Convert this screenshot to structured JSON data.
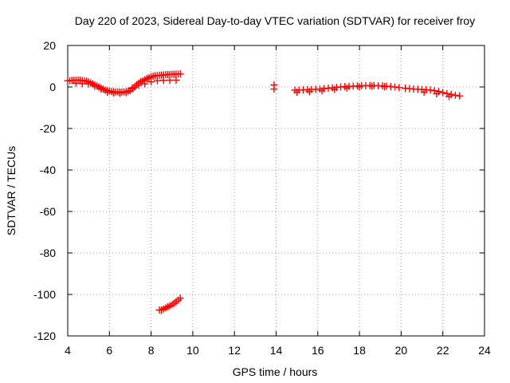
{
  "chart_data": {
    "type": "scatter",
    "title": "Day 220 of 2023, Sidereal Day-to-day VTEC variation (SDTVAR) for receiver froy",
    "xlabel": "GPS time / hours",
    "ylabel": "SDTVAR / TECUs",
    "xlim": [
      4,
      24
    ],
    "ylim": [
      -120,
      20
    ],
    "xticks": [
      4,
      6,
      8,
      10,
      12,
      14,
      16,
      18,
      20,
      22,
      24
    ],
    "yticks": [
      20,
      0,
      -20,
      -40,
      -60,
      -80,
      -100,
      -120
    ],
    "grid": true,
    "marker": "+",
    "color": "#ff0000",
    "series": [
      {
        "name": "SDTVAR",
        "x": [
          4.0,
          4.1,
          4.2,
          4.3,
          4.4,
          4.5,
          4.6,
          4.7,
          4.8,
          4.9,
          5.0,
          5.1,
          5.2,
          5.3,
          5.4,
          5.5,
          5.6,
          5.7,
          5.8,
          5.9,
          6.0,
          6.1,
          6.2,
          6.3,
          6.4,
          6.5,
          6.6,
          6.7,
          6.8,
          6.9,
          7.0,
          7.1,
          7.2,
          7.3,
          7.4,
          7.5,
          7.6,
          7.7,
          7.8,
          7.9,
          8.0,
          8.1,
          8.2,
          8.3,
          8.4,
          8.5,
          8.6,
          8.7,
          8.8,
          8.9,
          9.0,
          9.1,
          9.2,
          9.3,
          9.4,
          4.4,
          4.7,
          5.0,
          5.3,
          5.6,
          5.9,
          6.2,
          6.5,
          6.8,
          7.1,
          7.4,
          7.7,
          8.0,
          8.3,
          8.6,
          8.9,
          9.2,
          8.4,
          8.5,
          8.6,
          8.7,
          8.8,
          8.9,
          9.0,
          9.1,
          9.2,
          9.3,
          9.4,
          13.9,
          13.9,
          14.9,
          15.1,
          15.3,
          15.5,
          15.7,
          15.9,
          16.1,
          16.3,
          16.5,
          16.7,
          16.9,
          17.1,
          17.3,
          17.5,
          17.7,
          17.9,
          18.1,
          18.3,
          18.5,
          18.7,
          18.9,
          19.1,
          19.3,
          19.5,
          19.7,
          19.9,
          20.2,
          20.4,
          20.6,
          20.8,
          21.0,
          21.2,
          21.4,
          21.6,
          21.8,
          22.0,
          22.2,
          22.4,
          22.6,
          22.8,
          15.0,
          15.6,
          16.2,
          16.8,
          17.4,
          18.0,
          18.6,
          19.2,
          21.1,
          21.7,
          22.3
        ],
        "y": [
          3,
          3,
          3.2,
          3.2,
          3.3,
          3.3,
          3.2,
          3.1,
          3.0,
          2.8,
          2.5,
          2.0,
          1.5,
          1.0,
          0.5,
          0.0,
          -0.5,
          -1.0,
          -1.5,
          -1.8,
          -2.0,
          -2.2,
          -2.3,
          -2.4,
          -2.4,
          -2.5,
          -2.5,
          -2.4,
          -2.3,
          -2.0,
          -1.8,
          -1.0,
          0,
          1.0,
          1.8,
          2.5,
          3.0,
          3.5,
          4.0,
          4.5,
          5.0,
          5.2,
          5.4,
          5.5,
          5.6,
          5.7,
          5.8,
          5.9,
          6.0,
          6.0,
          6.1,
          6.1,
          6.2,
          6.2,
          6.3,
          1.8,
          1.6,
          1.5,
          0.4,
          -1.0,
          -2.5,
          -2.8,
          -2.9,
          -2.7,
          -0.5,
          0.8,
          1.5,
          2.5,
          3.0,
          3.2,
          3.3,
          3.3,
          -107.5,
          -107.5,
          -107.0,
          -106.5,
          -106.0,
          -105.5,
          -105.0,
          -104.3,
          -103.5,
          -102.7,
          -101.8,
          1.0,
          -1.0,
          -1.5,
          -1.5,
          -1.4,
          -1.3,
          -1.2,
          -1.1,
          -1.0,
          -0.8,
          -0.6,
          -0.4,
          -0.2,
          0.0,
          0.2,
          0.3,
          0.4,
          0.5,
          0.6,
          0.6,
          0.7,
          0.7,
          0.6,
          0.5,
          0.4,
          0.2,
          0.0,
          -0.3,
          -0.6,
          -0.8,
          -1.0,
          -1.1,
          -1.2,
          -1.3,
          -1.5,
          -1.8,
          -2.2,
          -2.7,
          -3.2,
          -3.6,
          -4.0,
          -4.3,
          -2.5,
          -2.2,
          -1.8,
          -1.2,
          -0.5,
          0.1,
          0.4,
          0.2,
          -2.5,
          -3.3,
          -4.6
        ]
      }
    ]
  }
}
